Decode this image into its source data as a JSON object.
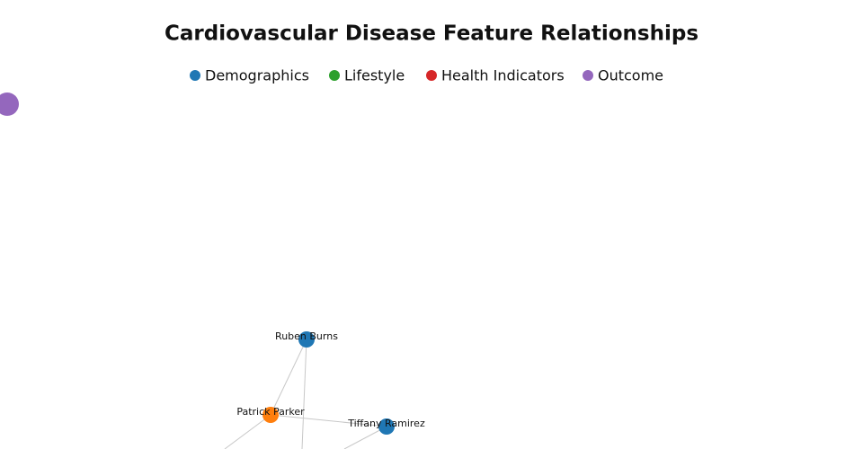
{
  "title": "Cardiovascular Disease Feature Relationships",
  "legend": [
    {
      "label": "Demographics",
      "color": "#1f77b4"
    },
    {
      "label": "Lifestyle",
      "color": "#2ca02c"
    },
    {
      "label": "Health Indicators",
      "color": "#d62728"
    },
    {
      "label": "Outcome",
      "color": "#9467bd"
    }
  ],
  "nodes": [
    {
      "label": "Ruben Burns",
      "color": "#1f77b4"
    },
    {
      "label": "Patrick Parker",
      "color": "#ff7f0e"
    },
    {
      "label": "Tiffany Ramirez",
      "color": "#1f77b4"
    }
  ],
  "edges": [
    [
      0,
      1
    ],
    [
      1,
      2
    ]
  ]
}
